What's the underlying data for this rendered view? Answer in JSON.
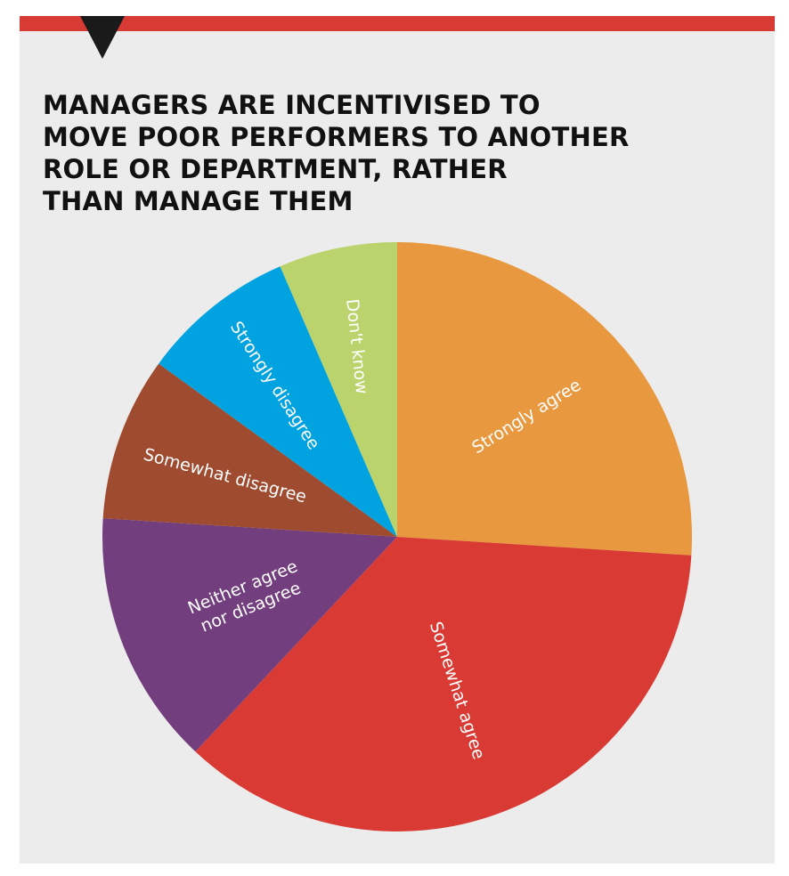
{
  "colors": {
    "accent_bar": "#d83a34",
    "panel_bg": "#ececec",
    "notch": "#1a1a1a"
  },
  "chart_data": {
    "type": "pie",
    "title": "MANAGERS ARE INCENTIVISED TO\nMOVE POOR PERFORMERS TO ANOTHER\nROLE OR DEPARTMENT, RATHER\nTHAN MANAGE THEM",
    "slices": [
      {
        "label": "Strongly agree",
        "value": 26,
        "color": "#e8983e"
      },
      {
        "label": "Somewhat agree",
        "value": 36,
        "color": "#d93a33"
      },
      {
        "label": "Neither agree nor disagree",
        "lines": [
          "Neither agree",
          "nor disagree"
        ],
        "value": 14,
        "color": "#733e7e"
      },
      {
        "label": "Somewhat disagree",
        "value": 9,
        "color": "#9e4b30"
      },
      {
        "label": "Strongly disagree",
        "value": 8.5,
        "color": "#00a3e0"
      },
      {
        "label": "Don't know",
        "value": 6.5,
        "color": "#bad36c"
      }
    ],
    "start_angle": "12 o'clock",
    "direction": "clockwise",
    "legend": "none (labels on slices)"
  }
}
